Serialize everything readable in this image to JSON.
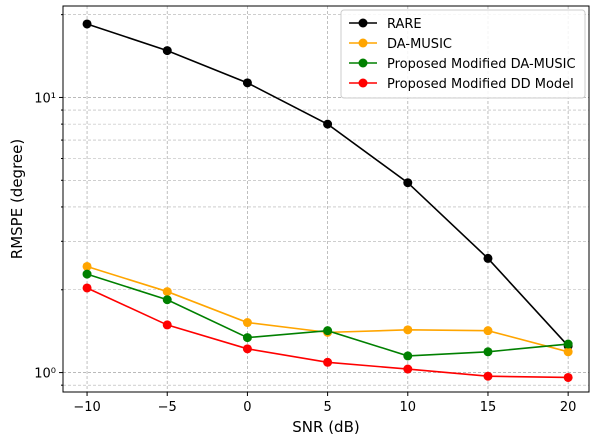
{
  "chart_data": {
    "type": "line",
    "xlabel": "SNR (dB)",
    "ylabel": "RMSPE (degree)",
    "x": [
      -10,
      -5,
      0,
      5,
      10,
      15,
      20
    ],
    "x_tick_labels": [
      "−10",
      "−5",
      "0",
      "5",
      "10",
      "15",
      "20"
    ],
    "y_scale": "log",
    "y_major_tick_labels": [
      "10⁰",
      "10¹"
    ],
    "xlim": [
      -11.5,
      21.3
    ],
    "ylim": [
      0.85,
      21.5
    ],
    "grid": true,
    "legend_position": "top-right",
    "series": [
      {
        "name": "RARE",
        "color": "#000000",
        "values": [
          18.5,
          14.8,
          11.3,
          8.0,
          4.9,
          2.6,
          1.25
        ]
      },
      {
        "name": "DA-MUSIC",
        "color": "#FFA500",
        "values": [
          2.43,
          1.97,
          1.52,
          1.4,
          1.43,
          1.42,
          1.19
        ]
      },
      {
        "name": "Proposed Modified DA-MUSIC",
        "color": "#008000",
        "values": [
          2.28,
          1.84,
          1.34,
          1.42,
          1.15,
          1.19,
          1.27
        ]
      },
      {
        "name": "Proposed Modified DD Model",
        "color": "#FF0000",
        "values": [
          2.03,
          1.49,
          1.22,
          1.09,
          1.03,
          0.97,
          0.96
        ]
      }
    ]
  }
}
